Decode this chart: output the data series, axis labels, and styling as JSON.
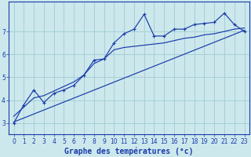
{
  "background_color": "#cce8ec",
  "grid_color": "#9fccd4",
  "line_color": "#1a3aaa",
  "xlabel": "Graphe des températures (°c)",
  "xlabel_color": "#1a3aaa",
  "xlim": [
    -0.5,
    23.5
  ],
  "ylim": [
    2.5,
    8.3
  ],
  "xtick_labels": [
    "0",
    "1",
    "2",
    "3",
    "4",
    "5",
    "6",
    "7",
    "8",
    "9",
    "10",
    "11",
    "12",
    "13",
    "14",
    "15",
    "16",
    "17",
    "18",
    "19",
    "20",
    "21",
    "22",
    "23"
  ],
  "xtick_vals": [
    0,
    1,
    2,
    3,
    4,
    5,
    6,
    7,
    8,
    9,
    10,
    11,
    12,
    13,
    14,
    15,
    16,
    17,
    18,
    19,
    20,
    21,
    22,
    23
  ],
  "yticks": [
    3,
    4,
    5,
    6,
    7
  ],
  "series1_x": [
    0,
    1,
    2,
    3,
    4,
    5,
    6,
    7,
    8,
    9,
    10,
    11,
    12,
    13,
    14,
    15,
    16,
    17,
    18,
    19,
    20,
    21,
    22,
    23
  ],
  "series1_y": [
    3.0,
    3.8,
    4.45,
    3.9,
    4.3,
    4.45,
    4.65,
    5.1,
    5.75,
    5.8,
    6.5,
    6.9,
    7.1,
    7.75,
    6.8,
    6.8,
    7.1,
    7.1,
    7.3,
    7.35,
    7.4,
    7.8,
    7.3,
    7.0
  ],
  "series2_x": [
    0,
    1,
    2,
    3,
    4,
    5,
    6,
    7,
    8,
    9,
    10,
    11,
    12,
    13,
    14,
    15,
    16,
    17,
    18,
    19,
    20,
    21,
    22,
    23
  ],
  "series2_y": [
    3.3,
    3.7,
    4.1,
    4.2,
    4.4,
    4.6,
    4.8,
    5.1,
    5.6,
    5.8,
    6.2,
    6.3,
    6.35,
    6.4,
    6.45,
    6.5,
    6.6,
    6.7,
    6.75,
    6.85,
    6.9,
    7.0,
    7.1,
    7.15
  ],
  "series3_x": [
    0,
    23
  ],
  "series3_y": [
    3.05,
    7.05
  ],
  "tick_fontsize": 5.5,
  "xlabel_fontsize": 7.0
}
